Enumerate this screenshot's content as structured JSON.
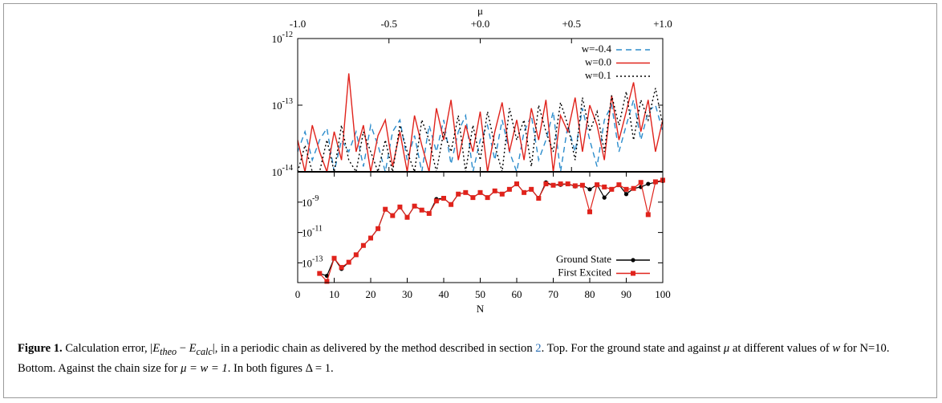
{
  "chart_data": [
    {
      "type": "line",
      "xlabel": "μ",
      "xaxis_position": "top",
      "log_y": true,
      "xlim": [
        -1,
        1
      ],
      "xticks": [
        {
          "value": -1,
          "label": "-1.0"
        },
        -0.5,
        {
          "value": 0,
          "label": "+0.0"
        },
        {
          "value": 0.5,
          "label": "+0.5"
        },
        {
          "value": 1,
          "label": "+1.0"
        }
      ],
      "ylim": [
        1e-14,
        1e-12
      ],
      "yticks": [
        {
          "value": 1e-12,
          "label": "10-12"
        },
        {
          "value": 1e-13,
          "label": "10-13"
        },
        {
          "value": 1e-14,
          "label": "10-14"
        }
      ],
      "legend": "upper right",
      "x": [
        -1,
        -0.96,
        -0.92,
        -0.88,
        -0.84,
        -0.8,
        -0.76,
        -0.72,
        -0.68,
        -0.64,
        -0.6,
        -0.56,
        -0.52,
        -0.48,
        -0.44,
        -0.4,
        -0.36,
        -0.32,
        -0.28,
        -0.24,
        -0.2,
        -0.16,
        -0.12,
        -0.08,
        -0.04,
        0,
        0.04,
        0.08,
        0.12,
        0.16,
        0.2,
        0.24,
        0.28,
        0.32,
        0.36,
        0.4,
        0.44,
        0.48,
        0.52,
        0.56,
        0.6,
        0.64,
        0.68,
        0.72,
        0.76,
        0.8,
        0.84,
        0.88,
        0.92,
        0.96,
        1
      ],
      "series": [
        {
          "name": "w=-0.4",
          "color": "#2b8ccc",
          "dash": "dashed",
          "values": [
            2e-14,
            4e-14,
            1.5e-14,
            3e-14,
            4.5e-14,
            1e-14,
            3e-14,
            2e-14,
            4e-14,
            1.2e-14,
            5e-14,
            2.5e-14,
            1e-14,
            4e-14,
            6e-14,
            1.5e-14,
            3.5e-14,
            1e-14,
            5e-14,
            2e-14,
            6e-14,
            1.3e-14,
            4e-14,
            7e-14,
            1e-14,
            3e-14,
            5e-14,
            1.5e-14,
            6e-14,
            2e-14,
            1e-14,
            4e-14,
            7e-14,
            1.5e-14,
            3e-14,
            8e-14,
            1e-14,
            5e-14,
            2e-14,
            9e-14,
            3e-14,
            1.2e-14,
            6e-14,
            1e-13,
            2e-14,
            5e-14,
            1.2e-13,
            3e-14,
            8e-14,
            1e-13,
            4e-14
          ]
        },
        {
          "name": "w=0.0",
          "color": "#e0231c",
          "dash": "solid",
          "values": [
            3e-14,
            1e-14,
            5e-14,
            2e-14,
            1e-14,
            4e-14,
            1.5e-14,
            3e-13,
            2e-14,
            5e-14,
            1e-14,
            3.5e-14,
            6e-14,
            1.2e-14,
            4e-14,
            1e-14,
            7e-14,
            2.5e-14,
            1e-14,
            9e-14,
            3e-14,
            1.2e-13,
            1.5e-14,
            5e-14,
            2e-14,
            8e-14,
            1e-14,
            4e-14,
            1.1e-13,
            2e-14,
            6e-14,
            1.5e-14,
            9e-14,
            3e-14,
            1.2e-13,
            1e-14,
            7e-14,
            4e-14,
            1.3e-13,
            2e-14,
            1e-13,
            5e-14,
            1.5e-14,
            1.4e-13,
            3e-14,
            8e-14,
            2.2e-13,
            4e-14,
            1.2e-13,
            2e-14,
            6e-14
          ]
        },
        {
          "name": "w=0.1",
          "color": "#000000",
          "dash": "dotted",
          "values": [
            1e-14,
            2.5e-14,
            1e-14,
            1e-14,
            3e-14,
            1e-14,
            5e-14,
            1.5e-14,
            1e-14,
            4e-14,
            2e-14,
            1e-14,
            3e-14,
            1e-14,
            5e-14,
            2e-14,
            1e-14,
            6e-14,
            3e-14,
            1e-14,
            4e-14,
            2e-14,
            7e-14,
            1e-14,
            5e-14,
            1.5e-14,
            8e-14,
            2.5e-14,
            1e-14,
            9e-14,
            3e-14,
            6e-14,
            1.2e-14,
            1e-13,
            4e-14,
            2e-14,
            1.1e-13,
            5e-14,
            1.5e-14,
            1.3e-13,
            4e-14,
            8e-14,
            2e-14,
            1.4e-13,
            5e-14,
            1.6e-13,
            3e-14,
            1.2e-13,
            6e-14,
            1.8e-13,
            5e-14
          ]
        }
      ]
    },
    {
      "type": "line",
      "xlabel": "N",
      "xaxis_position": "bottom",
      "log_y": true,
      "xlim": [
        0,
        100
      ],
      "xticks": [
        0,
        10,
        20,
        30,
        40,
        50,
        60,
        70,
        80,
        90,
        100
      ],
      "ylim": [
        5e-15,
        1e-07
      ],
      "yticks": [
        {
          "value": 1e-09,
          "label": "10-9"
        },
        {
          "value": 1e-11,
          "label": "10-11"
        },
        {
          "value": 1e-13,
          "label": "10-13"
        }
      ],
      "legend": "lower right",
      "x": [
        6,
        8,
        10,
        12,
        14,
        16,
        18,
        20,
        22,
        24,
        26,
        28,
        30,
        32,
        34,
        36,
        38,
        40,
        42,
        44,
        46,
        48,
        50,
        52,
        54,
        56,
        58,
        60,
        62,
        64,
        66,
        68,
        70,
        72,
        74,
        76,
        78,
        80,
        82,
        84,
        86,
        88,
        90,
        92,
        94,
        96,
        98,
        100
      ],
      "series": [
        {
          "name": "Ground State",
          "color": "#000000",
          "marker": "circle",
          "values": [
            2e-14,
            1.4e-14,
            2e-13,
            4e-14,
            1.1e-13,
            3.4e-13,
            1.4e-12,
            4.3e-12,
            1.8e-11,
            3.4e-10,
            1.3e-10,
            4.8e-10,
            1e-10,
            5.5e-10,
            3e-10,
            1.8e-10,
            1.6e-09,
            1.8e-09,
            7e-10,
            3.4e-09,
            4.3e-09,
            2e-09,
            4.3e-09,
            2e-09,
            5.5e-09,
            3.4e-09,
            7e-09,
            1.6e-08,
            4.3e-09,
            7e-09,
            1.8e-09,
            2e-08,
            1.3e-08,
            1.4e-08,
            1.6e-08,
            1.1e-08,
            1.3e-08,
            7e-09,
            1.4e-08,
            2e-09,
            7e-09,
            1.4e-08,
            3.4e-09,
            8e-09,
            1e-08,
            1.6e-08,
            2e-08,
            2.5e-08
          ]
        },
        {
          "name": "First Excited",
          "color": "#e0231c",
          "marker": "square",
          "values": [
            2e-14,
            6e-15,
            2e-13,
            5e-14,
            1.1e-13,
            3.4e-13,
            1.4e-12,
            4.3e-12,
            1.8e-11,
            3.4e-10,
            1.3e-10,
            4.8e-10,
            1e-10,
            5.5e-10,
            3e-10,
            1.8e-10,
            1.2e-09,
            1.8e-09,
            7e-10,
            3.4e-09,
            4.3e-09,
            2e-09,
            4.3e-09,
            2e-09,
            5.5e-09,
            3.4e-09,
            7e-09,
            1.6e-08,
            4.3e-09,
            7e-09,
            1.8e-09,
            1.6e-08,
            1.3e-08,
            1.6e-08,
            1.6e-08,
            1.2e-08,
            1.3e-08,
            2.3e-10,
            1.4e-08,
            1e-08,
            7e-09,
            1.4e-08,
            7e-09,
            8e-09,
            2e-08,
            1.5e-10,
            2.2e-08,
            2.8e-08
          ]
        }
      ]
    }
  ],
  "caption": {
    "parts": [
      "Figure 1.",
      " Calculation error, |",
      "E",
      "theo",
      " − ",
      "E",
      "calc",
      "|, in a periodic chain as delivered by the method described in section ",
      "2",
      ". Top. For the ground state and against ",
      "μ",
      " at different values of ",
      "w",
      " for N=10. Bottom. Against the chain size for ",
      "μ = w = 1",
      ". In both figures ",
      "Δ = 1",
      "."
    ]
  }
}
